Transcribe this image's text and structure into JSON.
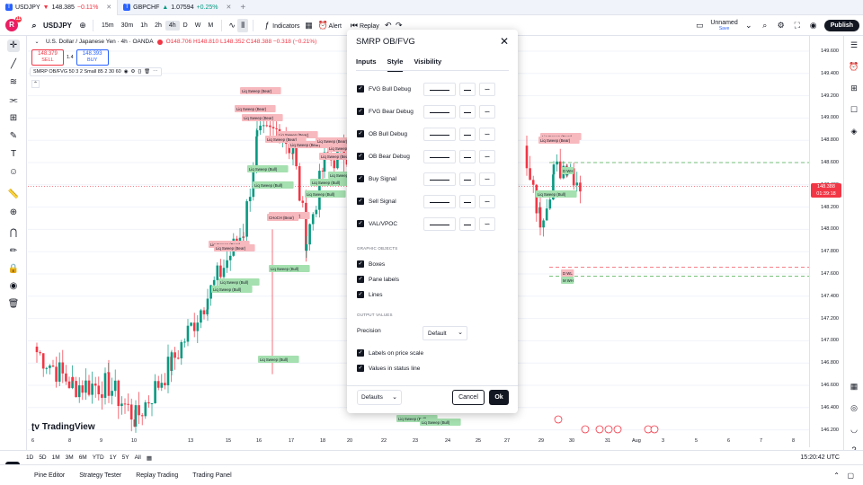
{
  "browser_tabs": [
    {
      "symbol": "USDJPY",
      "arrow": "▼",
      "price": "148.385",
      "change": "−0.11%",
      "dir": "down"
    },
    {
      "symbol": "GBPCHF",
      "arrow": "▲",
      "price": "1.07594",
      "change": "+0.25%",
      "dir": "up"
    }
  ],
  "toolbar": {
    "logo_letter": "R",
    "logo_badge": "11",
    "symbol": "USDJPY",
    "timeframes": [
      "15m",
      "30m",
      "1h",
      "2h",
      "4h",
      "D",
      "W",
      "M"
    ],
    "active_timeframe": "4h",
    "indicators_label": "Indicators",
    "alert_label": "Alert",
    "replay_label": "Replay",
    "unnamed_label": "Unnamed",
    "save_label": "Save",
    "publish_label": "Publish"
  },
  "legend": {
    "title": "U.S. Dollar / Japanese Yen · 4h · OANDA",
    "ohlc": "O148.706 H148.810 L148.352 C148.388 −0.318 (−0.21%)",
    "sell_price": "148.379",
    "sell_label": "SELL",
    "spread": "1.4",
    "buy_price": "148.393",
    "buy_label": "BUY",
    "indicator": "SMRP OB/FVG 50 3 2 Small 85 2 30 60"
  },
  "price_scale": [
    "149.600",
    "149.400",
    "149.200",
    "149.000",
    "148.800",
    "148.600",
    "148.400",
    "148.200",
    "148.000",
    "147.800",
    "147.600",
    "147.400",
    "147.200",
    "147.000",
    "146.800",
    "146.600",
    "146.400",
    "146.200"
  ],
  "current_price": "148.388",
  "current_time": "01:39:18",
  "time_axis": [
    "6",
    "8",
    "9",
    "10",
    "13",
    "15",
    "16",
    "17",
    "18",
    "20",
    "22",
    "23",
    "24",
    "25",
    "27",
    "29",
    "30",
    "31",
    "Aug",
    "3",
    "5",
    "6",
    "7",
    "8"
  ],
  "chart_labels": {
    "sweep_bear": "Liq Sweep (Bear)",
    "sweep_bull": "Liq Sweep (Bull)",
    "choch_bear": "CHoCH (Bear)",
    "d_wh": "D WH",
    "d_wl": "D WL",
    "m_wh": "M WH"
  },
  "modal": {
    "title": "SMRP OB/FVG",
    "tabs": [
      "Inputs",
      "Style",
      "Visibility"
    ],
    "active_tab": "Style",
    "style_rows": [
      "FVG Bull Debug",
      "FVG Bear Debug",
      "OB Bull Debug",
      "OB Bear Debug",
      "Buy Signal",
      "Sell Signal",
      "VAL/VPOC"
    ],
    "graphic_objects_header": "GRAPHIC OBJECTS",
    "graphic_objects": [
      "Boxes",
      "Pane labels",
      "Lines"
    ],
    "output_values_header": "OUTPUT VALUES",
    "precision_label": "Precision",
    "precision_value": "Default",
    "output_checks": [
      "Labels on price scale",
      "Values in status line"
    ],
    "defaults_label": "Defaults",
    "cancel_label": "Cancel",
    "ok_label": "Ok"
  },
  "range_buttons": [
    "1D",
    "5D",
    "1M",
    "3M",
    "6M",
    "YTD",
    "1Y",
    "5Y",
    "All"
  ],
  "clock": "15:20:42 UTC",
  "bottom_tabs": [
    "Pine Editor",
    "Strategy Tester",
    "Replay Trading",
    "Trading Panel"
  ],
  "brand": "TradingView",
  "colors": {
    "bull": "#089981",
    "bear": "#f23645",
    "accent": "#2962ff",
    "bear_label": "#f7b9be",
    "bull_label": "#a5e0b0"
  }
}
